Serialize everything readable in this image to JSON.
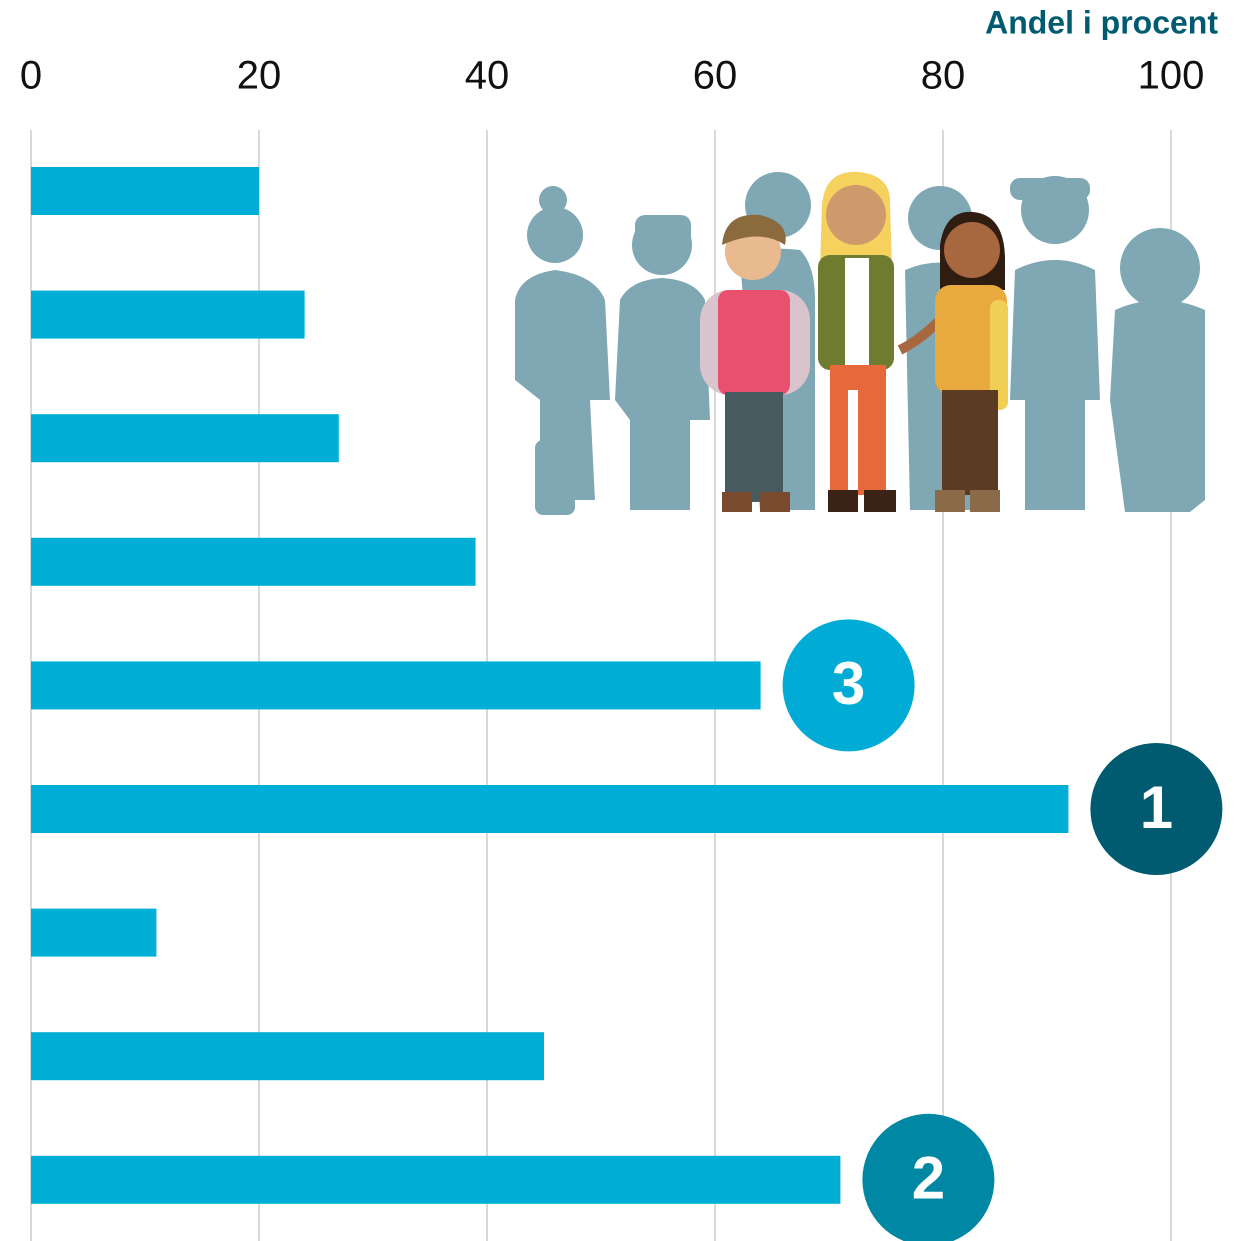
{
  "chart_data": {
    "type": "barh",
    "x_label": "Andel i procent",
    "categories": [
      null,
      null,
      null,
      null,
      null,
      null,
      null,
      null,
      null
    ],
    "values": [
      20,
      24,
      27,
      39,
      64,
      91,
      11,
      45,
      71
    ],
    "color": "#00aed6",
    "rank_labels": [
      null,
      null,
      null,
      null,
      "3",
      "1",
      null,
      null,
      "2"
    ],
    "rank_colors": [
      null,
      null,
      null,
      null,
      "#00acd6",
      "#005a70",
      null,
      null,
      "#0087a3"
    ],
    "xlim": [
      0,
      100
    ],
    "xticks": [
      0,
      20,
      40,
      60,
      80,
      100
    ],
    "grid": true
  }
}
